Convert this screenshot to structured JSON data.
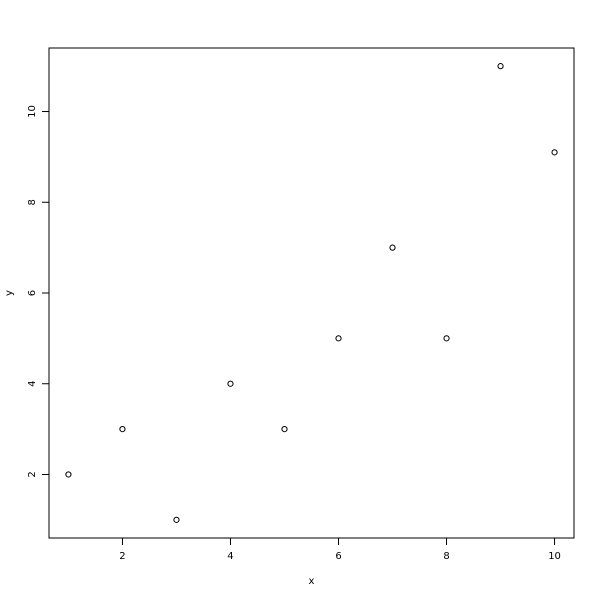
{
  "chart_data": {
    "type": "scatter",
    "title": "",
    "xlabel": "x",
    "ylabel": "y",
    "x": [
      1,
      2,
      3,
      4,
      5,
      6,
      7,
      8,
      9,
      10
    ],
    "y": [
      2,
      3,
      1,
      4,
      3,
      5,
      7,
      5,
      11,
      9.1
    ],
    "xlim": [
      0.64,
      10.36
    ],
    "ylim": [
      0.6,
      11.4
    ],
    "xticks": [
      2,
      4,
      6,
      8,
      10
    ],
    "yticks": [
      2,
      4,
      6,
      8,
      10
    ],
    "grid": false,
    "marker": "open-circle",
    "color": "#000000"
  }
}
